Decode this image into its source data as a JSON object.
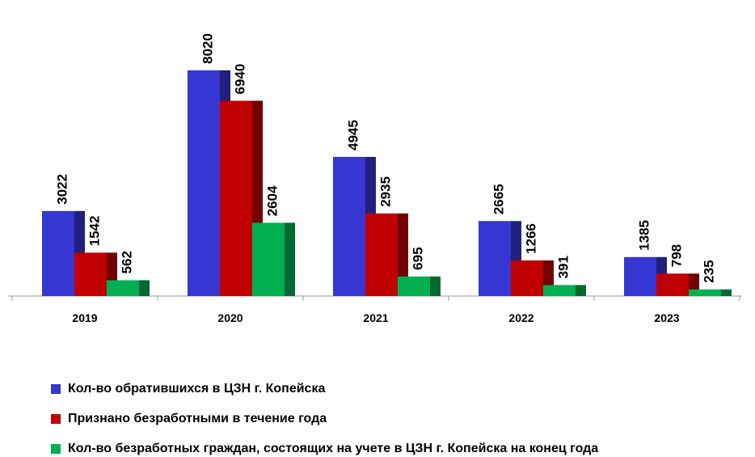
{
  "chart_data": {
    "type": "bar",
    "categories": [
      "2019",
      "2020",
      "2021",
      "2022",
      "2023"
    ],
    "series": [
      {
        "name": "Кол-во обратившихся в ЦЗН г. Копейска",
        "color": "#3636d2",
        "values": [
          3022,
          8020,
          4945,
          2665,
          1385
        ]
      },
      {
        "name": "Признано безработными в течение года",
        "color": "#c00000",
        "values": [
          1542,
          6940,
          2935,
          1266,
          798
        ]
      },
      {
        "name": "Кол-во безработных граждан, состоящих на учете в ЦЗН г. Копейска на конец года",
        "color": "#00b050",
        "values": [
          562,
          2604,
          695,
          391,
          235
        ]
      }
    ],
    "legend": "bottom",
    "grid": false
  }
}
